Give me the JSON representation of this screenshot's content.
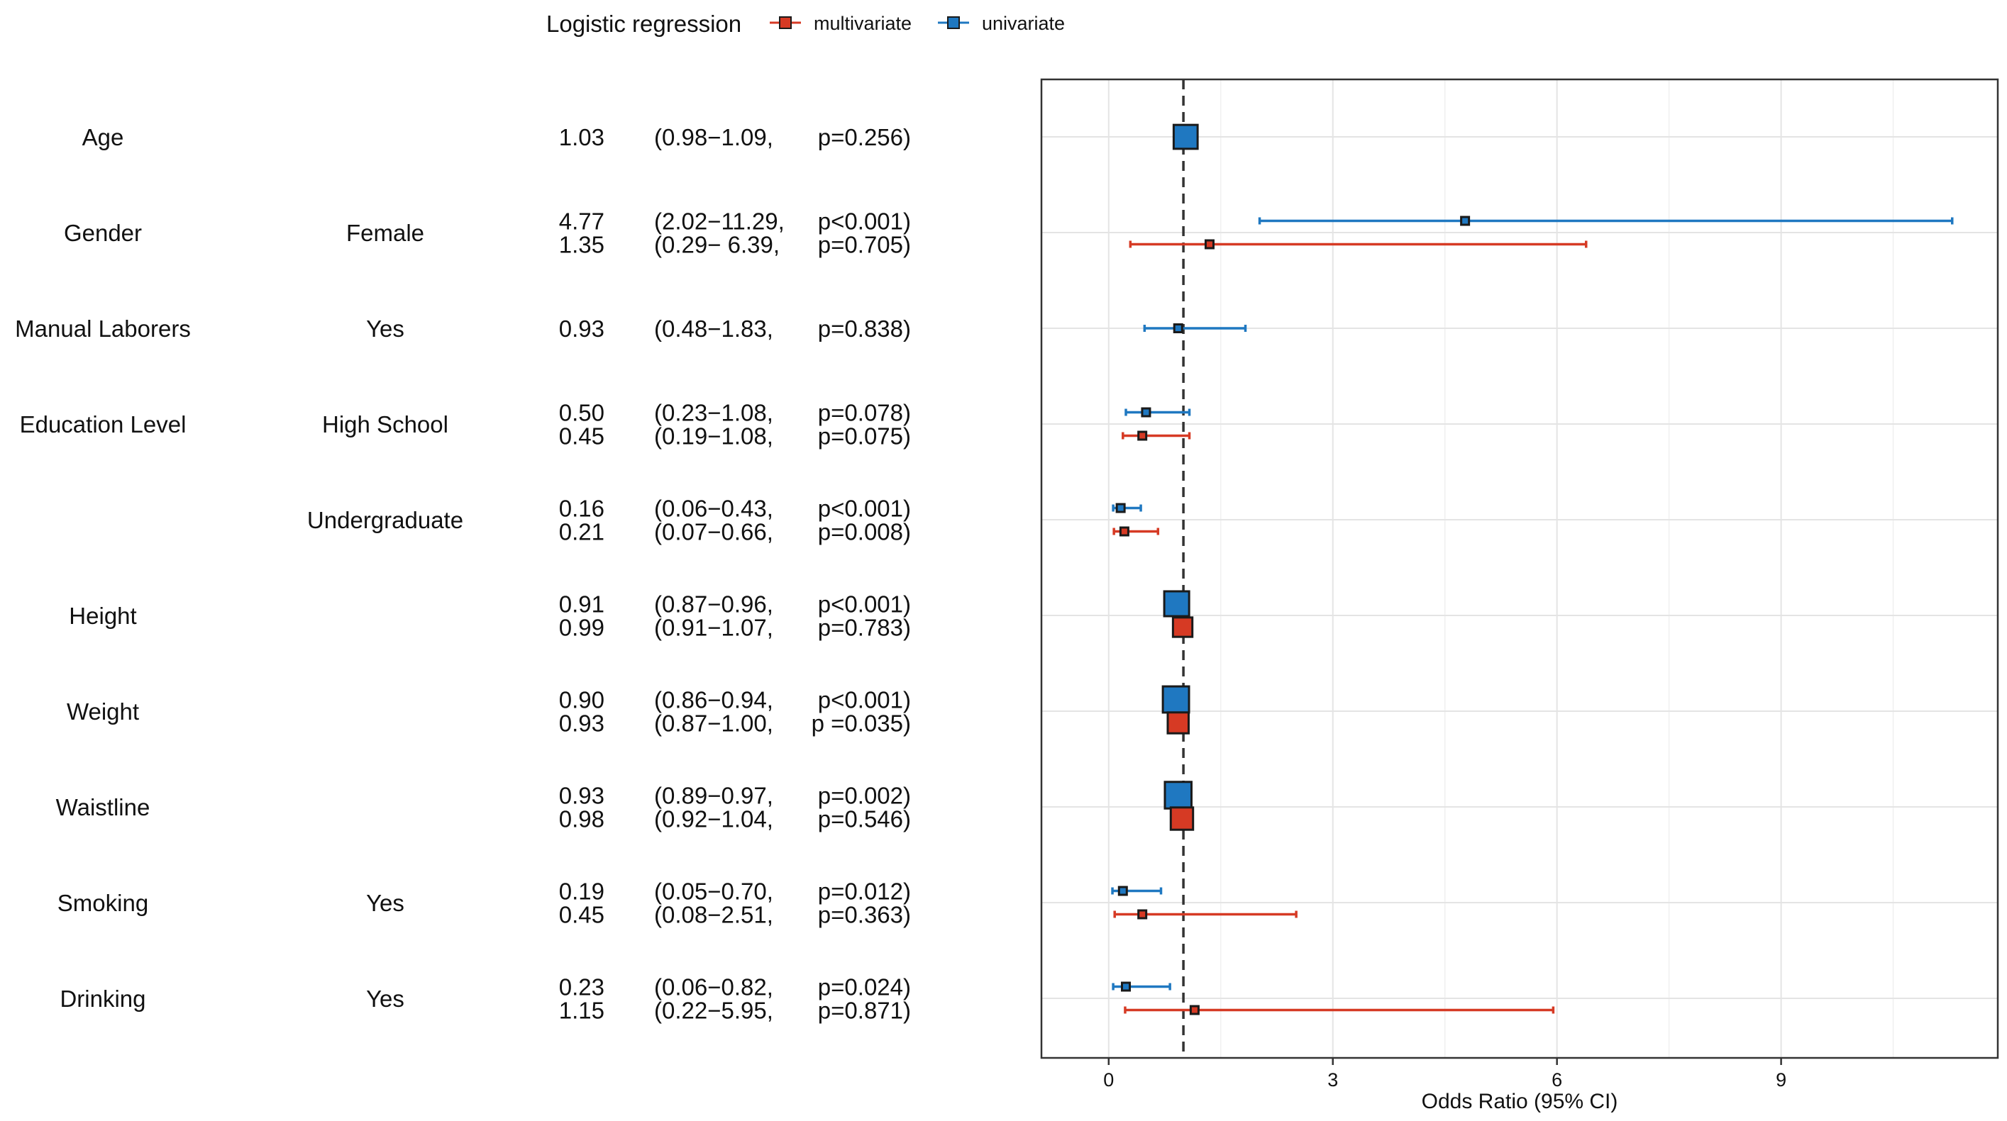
{
  "chart_data": {
    "type": "forest",
    "legend": {
      "title": "Logistic regression",
      "entries": [
        {
          "key": "multivariate",
          "label": "multivariate",
          "color": "#d63a24"
        },
        {
          "key": "univariate",
          "label": "univariate",
          "color": "#1f78c1"
        }
      ],
      "placement": "top"
    },
    "xlabel": "Odds Ratio (95% CI)",
    "xlim": [
      -0.9,
      11.9
    ],
    "xticks": [
      0,
      3,
      6,
      9
    ],
    "xtick_labels": [
      "0",
      "3",
      "6",
      "9"
    ],
    "reference_line": 1,
    "grid": true,
    "rows": [
      {
        "variable": "Age",
        "level": "",
        "estimates": [
          {
            "series": "univariate",
            "or": 1.03,
            "lo": 0.98,
            "hi": 1.09,
            "or_text": "1.03",
            "ci_text": "(0.98−1.09,",
            "p_text": "p=0.256)"
          }
        ]
      },
      {
        "variable": "Gender",
        "level": "Female",
        "estimates": [
          {
            "series": "univariate",
            "or": 4.77,
            "lo": 2.02,
            "hi": 11.29,
            "or_text": "4.77",
            "ci_text": "(2.02−11.29,",
            "p_text": "p<0.001)"
          },
          {
            "series": "multivariate",
            "or": 1.35,
            "lo": 0.29,
            "hi": 6.39,
            "or_text": "1.35",
            "ci_text": "(0.29−  6.39,",
            "p_text": "p=0.705)"
          }
        ]
      },
      {
        "variable": "Manual Laborers",
        "level": "Yes",
        "estimates": [
          {
            "series": "univariate",
            "or": 0.93,
            "lo": 0.48,
            "hi": 1.83,
            "or_text": "0.93",
            "ci_text": "(0.48−1.83,",
            "p_text": "p=0.838)"
          }
        ]
      },
      {
        "variable": "Education Level",
        "level": "High School",
        "estimates": [
          {
            "series": "univariate",
            "or": 0.5,
            "lo": 0.23,
            "hi": 1.08,
            "or_text": "0.50",
            "ci_text": "(0.23−1.08,",
            "p_text": "p=0.078)"
          },
          {
            "series": "multivariate",
            "or": 0.45,
            "lo": 0.19,
            "hi": 1.08,
            "or_text": "0.45",
            "ci_text": "(0.19−1.08,",
            "p_text": "p=0.075)"
          }
        ]
      },
      {
        "variable": "",
        "level": "Undergraduate",
        "estimates": [
          {
            "series": "univariate",
            "or": 0.16,
            "lo": 0.06,
            "hi": 0.43,
            "or_text": "0.16",
            "ci_text": "(0.06−0.43,",
            "p_text": "p<0.001)"
          },
          {
            "series": "multivariate",
            "or": 0.21,
            "lo": 0.07,
            "hi": 0.66,
            "or_text": "0.21",
            "ci_text": "(0.07−0.66,",
            "p_text": "p=0.008)"
          }
        ]
      },
      {
        "variable": "Height",
        "level": "",
        "estimates": [
          {
            "series": "univariate",
            "or": 0.91,
            "lo": 0.87,
            "hi": 0.96,
            "or_text": "0.91",
            "ci_text": "(0.87−0.96,",
            "p_text": "p<0.001)"
          },
          {
            "series": "multivariate",
            "or": 0.99,
            "lo": 0.91,
            "hi": 1.07,
            "or_text": "0.99",
            "ci_text": "(0.91−1.07,",
            "p_text": "p=0.783)"
          }
        ]
      },
      {
        "variable": "Weight",
        "level": "",
        "estimates": [
          {
            "series": "univariate",
            "or": 0.9,
            "lo": 0.86,
            "hi": 0.94,
            "or_text": "0.90",
            "ci_text": "(0.86−0.94,",
            "p_text": "p<0.001)"
          },
          {
            "series": "multivariate",
            "or": 0.93,
            "lo": 0.87,
            "hi": 1.0,
            "or_text": "0.93",
            "ci_text": "(0.87−1.00,",
            "p_text": "p  =0.035)"
          }
        ]
      },
      {
        "variable": "Waistline",
        "level": "",
        "estimates": [
          {
            "series": "univariate",
            "or": 0.93,
            "lo": 0.89,
            "hi": 0.97,
            "or_text": "0.93",
            "ci_text": "(0.89−0.97,",
            "p_text": "p=0.002)"
          },
          {
            "series": "multivariate",
            "or": 0.98,
            "lo": 0.92,
            "hi": 1.04,
            "or_text": "0.98",
            "ci_text": "(0.92−1.04,",
            "p_text": "p=0.546)"
          }
        ]
      },
      {
        "variable": "Smoking",
        "level": "Yes",
        "estimates": [
          {
            "series": "univariate",
            "or": 0.19,
            "lo": 0.05,
            "hi": 0.7,
            "or_text": "0.19",
            "ci_text": "(0.05−0.70,",
            "p_text": "p=0.012)"
          },
          {
            "series": "multivariate",
            "or": 0.45,
            "lo": 0.08,
            "hi": 2.51,
            "or_text": "0.45",
            "ci_text": "(0.08−2.51,",
            "p_text": "p=0.363)"
          }
        ]
      },
      {
        "variable": "Drinking",
        "level": "Yes",
        "estimates": [
          {
            "series": "univariate",
            "or": 0.23,
            "lo": 0.06,
            "hi": 0.82,
            "or_text": "0.23",
            "ci_text": "(0.06−0.82,",
            "p_text": "p=0.024)"
          },
          {
            "series": "multivariate",
            "or": 1.15,
            "lo": 0.22,
            "hi": 5.95,
            "or_text": "1.15",
            "ci_text": "(0.22−5.95,",
            "p_text": "p=0.871)"
          }
        ]
      }
    ]
  }
}
